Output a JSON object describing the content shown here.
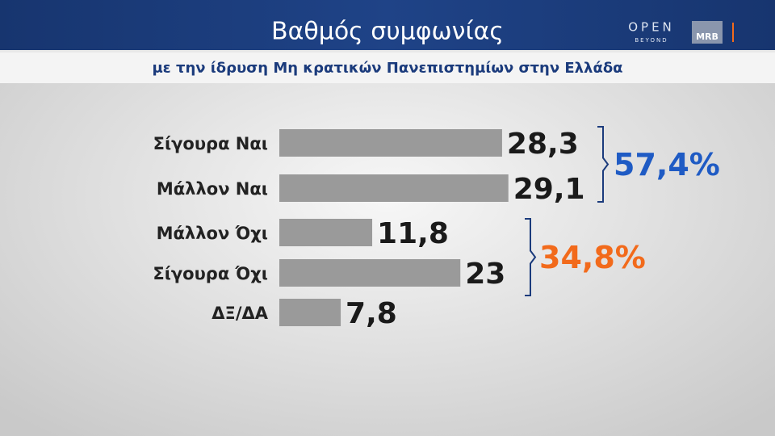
{
  "chart_data": {
    "type": "bar",
    "orientation": "horizontal",
    "title": "Βαθμός συμφωνίας",
    "subtitle": "με την ίδρυση Μη κρατικών Πανεπιστημίων στην Ελλάδα",
    "categories": [
      "Σίγουρα Ναι",
      "Μάλλον Ναι",
      "Μάλλον Όχι",
      "Σίγουρα Όχι",
      "ΔΞ/ΔΑ"
    ],
    "values": [
      28.3,
      29.1,
      11.8,
      23,
      7.8
    ],
    "value_labels": [
      "28,3",
      "29,1",
      "11,8",
      "23",
      "7,8"
    ],
    "color": "#9a9a9a",
    "annotations": [
      {
        "label": "57,4%",
        "color": "#1f5bc4"
      },
      {
        "label": "34,8%",
        "color": "#f26a1b"
      }
    ]
  },
  "branding": {
    "channel": "OPEN",
    "channel_sub": "BEYOND",
    "pollster": "MRB"
  }
}
